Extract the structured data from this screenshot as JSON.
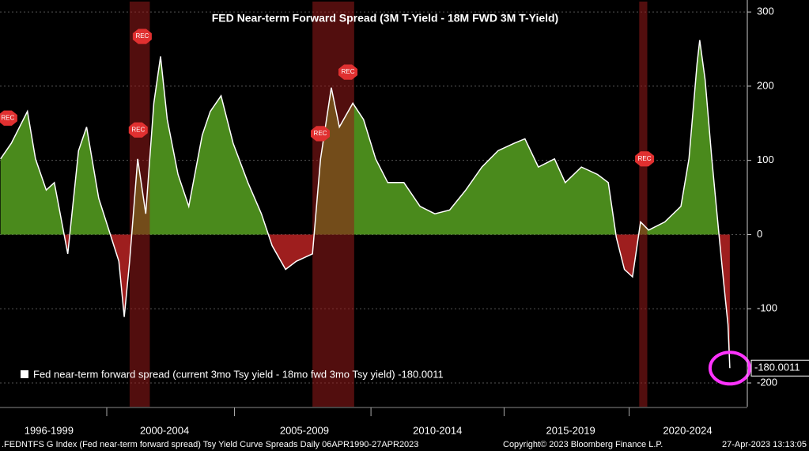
{
  "chart_data": {
    "type": "area",
    "title": "FED Near-term Forward Spread (3M T-Yield - 18M FWD 3M T-Yield)",
    "series": [
      {
        "name": "Fed near-term forward spread (current 3mo Tsy yield - 18mo fwd 3mo Tsy yield) -180.0011",
        "color": "#ffffff",
        "positive_color": "#4a8a1c",
        "negative_color": "#9e1e1e",
        "x": [
          1996.2,
          1996.6,
          1997.2,
          1997.5,
          1997.9,
          1998.2,
          1998.7,
          1999.1,
          1999.4,
          1999.85,
          2000.6,
          2000.8,
          2001.0,
          2001.3,
          2001.6,
          2001.9,
          2002.15,
          2002.4,
          2002.8,
          2003.2,
          2003.7,
          2004.0,
          2004.4,
          2004.85,
          2005.4,
          2005.9,
          2006.3,
          2006.8,
          2007.2,
          2007.8,
          2008.1,
          2008.5,
          2008.8,
          2009.3,
          2009.7,
          2010.15,
          2010.6,
          2011.2,
          2011.8,
          2012.35,
          2012.9,
          2013.5,
          2014.1,
          2014.7,
          2015.3,
          2015.7,
          2016.2,
          2016.8,
          2017.2,
          2017.8,
          2018.4,
          2018.8,
          2019.1,
          2019.4,
          2019.7,
          2020.0,
          2020.3,
          2020.9,
          2021.5,
          2021.8,
          2022.1,
          2022.2,
          2022.4,
          2022.65,
          2022.9,
          2023.1,
          2023.25,
          2023.32
        ],
        "values": [
          102,
          123,
          166,
          102,
          60,
          70,
          -26,
          113,
          145,
          49,
          -36,
          -111,
          -36,
          102,
          28,
          177,
          240,
          155,
          81,
          38,
          134,
          166,
          187,
          123,
          70,
          28,
          -15,
          -47,
          -36,
          -26,
          102,
          198,
          145,
          177,
          155,
          102,
          70,
          70,
          38,
          28,
          33,
          60,
          91,
          113,
          123,
          129,
          91,
          102,
          70,
          91,
          81,
          70,
          -4,
          -47,
          -57,
          17,
          6,
          17,
          38,
          102,
          230,
          262,
          209,
          102,
          6,
          -68,
          -121,
          -180.0011
        ]
      }
    ],
    "recessions": [
      [
        2001.0,
        2001.75
      ],
      [
        2007.8,
        2009.35
      ],
      [
        2019.95,
        2020.25
      ]
    ],
    "rec_label": "REC",
    "rec_markers": {
      "x": [
        1996.47,
        2001.47,
        2001.32,
        2008.09,
        2009.12,
        2020.15
      ],
      "y": [
        157,
        267,
        141,
        136,
        219,
        102
      ]
    },
    "xlim": [
      1996.18,
      2023.97
    ],
    "xticks": [
      {
        "value": 1998.0,
        "label": "1996-1999"
      },
      {
        "value": 2002.3,
        "label": "2000-2004"
      },
      {
        "value": 2007.5,
        "label": "2005-2009"
      },
      {
        "value": 2012.45,
        "label": "2010-2014"
      },
      {
        "value": 2017.4,
        "label": "2015-2019"
      },
      {
        "value": 2021.75,
        "label": "2020-2024"
      }
    ],
    "ylim": [
      -232,
      314
    ],
    "yticks": [
      300,
      200,
      100,
      0,
      -100,
      -200
    ],
    "grid": true,
    "footer_left": ".FEDNTFS G Index (Fed near-term forward spread) Tsy Yield Curve Spreads  Daily 06APR1990-27APR2023",
    "copyright": "Copyright© 2023 Bloomberg Finance L.P.",
    "timestamp": "27-Apr-2023 13:13:05"
  }
}
